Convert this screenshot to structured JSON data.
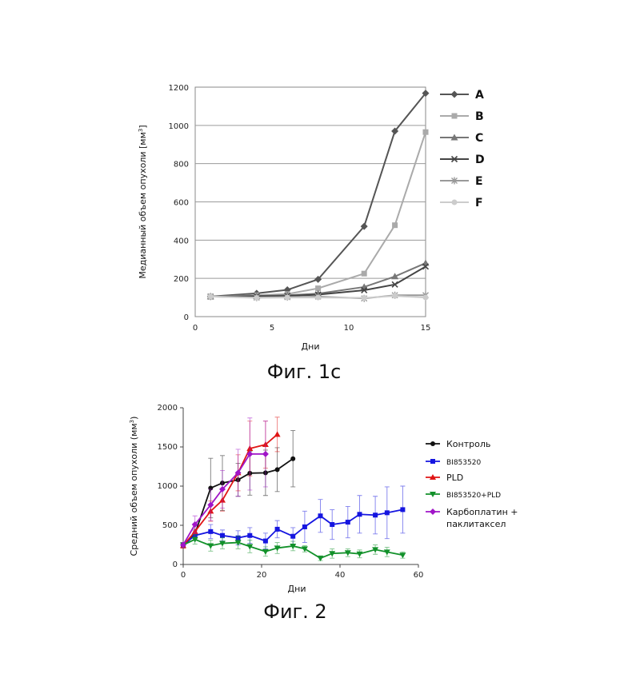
{
  "figures": {
    "caption1": "Фиг. 1с",
    "caption2": "Фиг. 2"
  },
  "chart_data": [
    {
      "type": "line",
      "xlabel": "Дни",
      "ylabel": "Медианный объем опухоли [мм",
      "ylabel_sup": "3",
      "ylabel_end": "]",
      "xlim": [
        0,
        15
      ],
      "ylim": [
        0,
        1200
      ],
      "xticks": [
        0,
        5,
        10,
        15
      ],
      "yticks": [
        0,
        200,
        400,
        600,
        800,
        1000,
        1200
      ],
      "grid": true,
      "legend": "right",
      "x": [
        1,
        4,
        6,
        8,
        11,
        13,
        15
      ],
      "series": [
        {
          "name": "A",
          "marker": "diamond",
          "color": "#555555",
          "values": [
            105,
            122,
            140,
            195,
            472,
            970,
            1168
          ]
        },
        {
          "name": "B",
          "marker": "square",
          "color": "#aaaaaa",
          "values": [
            105,
            112,
            118,
            148,
            225,
            478,
            965
          ]
        },
        {
          "name": "C",
          "marker": "triangle",
          "color": "#777777",
          "values": [
            105,
            108,
            112,
            120,
            155,
            210,
            280
          ]
        },
        {
          "name": "D",
          "marker": "x",
          "color": "#444444",
          "values": [
            105,
            106,
            108,
            115,
            138,
            168,
            262
          ]
        },
        {
          "name": "E",
          "marker": "star",
          "color": "#999999",
          "values": [
            105,
            100,
            102,
            105,
            95,
            112,
            112
          ]
        },
        {
          "name": "F",
          "marker": "circle",
          "color": "#cccccc",
          "values": [
            105,
            98,
            100,
            100,
            98,
            108,
            100
          ]
        }
      ]
    },
    {
      "type": "line",
      "xlabel": "Дни",
      "ylabel": "Средний объем опухоли (мм",
      "ylabel_sup": "3",
      "ylabel_end": ")",
      "xlim": [
        0,
        60
      ],
      "ylim": [
        0,
        2000
      ],
      "xticks": [
        0,
        20,
        40,
        60
      ],
      "yticks": [
        0,
        500,
        1000,
        1500,
        2000
      ],
      "grid": false,
      "legend": "right",
      "series": [
        {
          "name": "Контроль",
          "marker": "circle",
          "color": "#111111",
          "x": [
            0,
            3,
            7,
            10,
            14,
            17,
            21,
            24,
            28
          ],
          "values": [
            240,
            390,
            975,
            1040,
            1080,
            1165,
            1170,
            1210,
            1350
          ],
          "err": [
            30,
            60,
            380,
            350,
            210,
            280,
            290,
            280,
            360
          ]
        },
        {
          "name": "BI853520",
          "marker": "square",
          "color": "#1515e0",
          "x": [
            0,
            3,
            7,
            10,
            14,
            17,
            21,
            24,
            28,
            31,
            35,
            38,
            42,
            45,
            49,
            52,
            56
          ],
          "values": [
            250,
            370,
            420,
            370,
            340,
            370,
            300,
            450,
            360,
            480,
            620,
            510,
            540,
            640,
            630,
            660,
            700
          ],
          "err": [
            30,
            60,
            90,
            70,
            90,
            100,
            100,
            110,
            110,
            200,
            210,
            190,
            200,
            240,
            240,
            330,
            300
          ]
        },
        {
          "name": "PLD",
          "marker": "triangle-up",
          "color": "#e01515",
          "x": [
            0,
            3,
            7,
            10,
            14,
            17,
            21,
            24
          ],
          "values": [
            240,
            420,
            680,
            820,
            1170,
            1480,
            1530,
            1660
          ],
          "err": [
            30,
            80,
            130,
            140,
            230,
            350,
            300,
            220
          ]
        },
        {
          "name": "BI853520+PLD",
          "marker": "triangle-down",
          "color": "#12912a",
          "x": [
            0,
            3,
            7,
            10,
            14,
            17,
            21,
            24,
            28,
            31,
            35,
            38,
            42,
            45,
            49,
            52,
            56
          ],
          "values": [
            250,
            320,
            240,
            270,
            280,
            230,
            165,
            210,
            235,
            200,
            80,
            140,
            150,
            135,
            190,
            160,
            120
          ],
          "err": [
            30,
            60,
            70,
            70,
            80,
            80,
            60,
            70,
            60,
            40,
            30,
            60,
            50,
            50,
            60,
            60,
            40
          ]
        },
        {
          "name": "Карбоплатин +\nпаклитаксел",
          "marker": "diamond",
          "color": "#a015c8",
          "x": [
            0,
            3,
            7,
            10,
            14,
            17,
            21
          ],
          "values": [
            250,
            510,
            760,
            960,
            1170,
            1410,
            1410
          ],
          "err": [
            30,
            110,
            200,
            240,
            300,
            460,
            420
          ]
        }
      ]
    }
  ]
}
